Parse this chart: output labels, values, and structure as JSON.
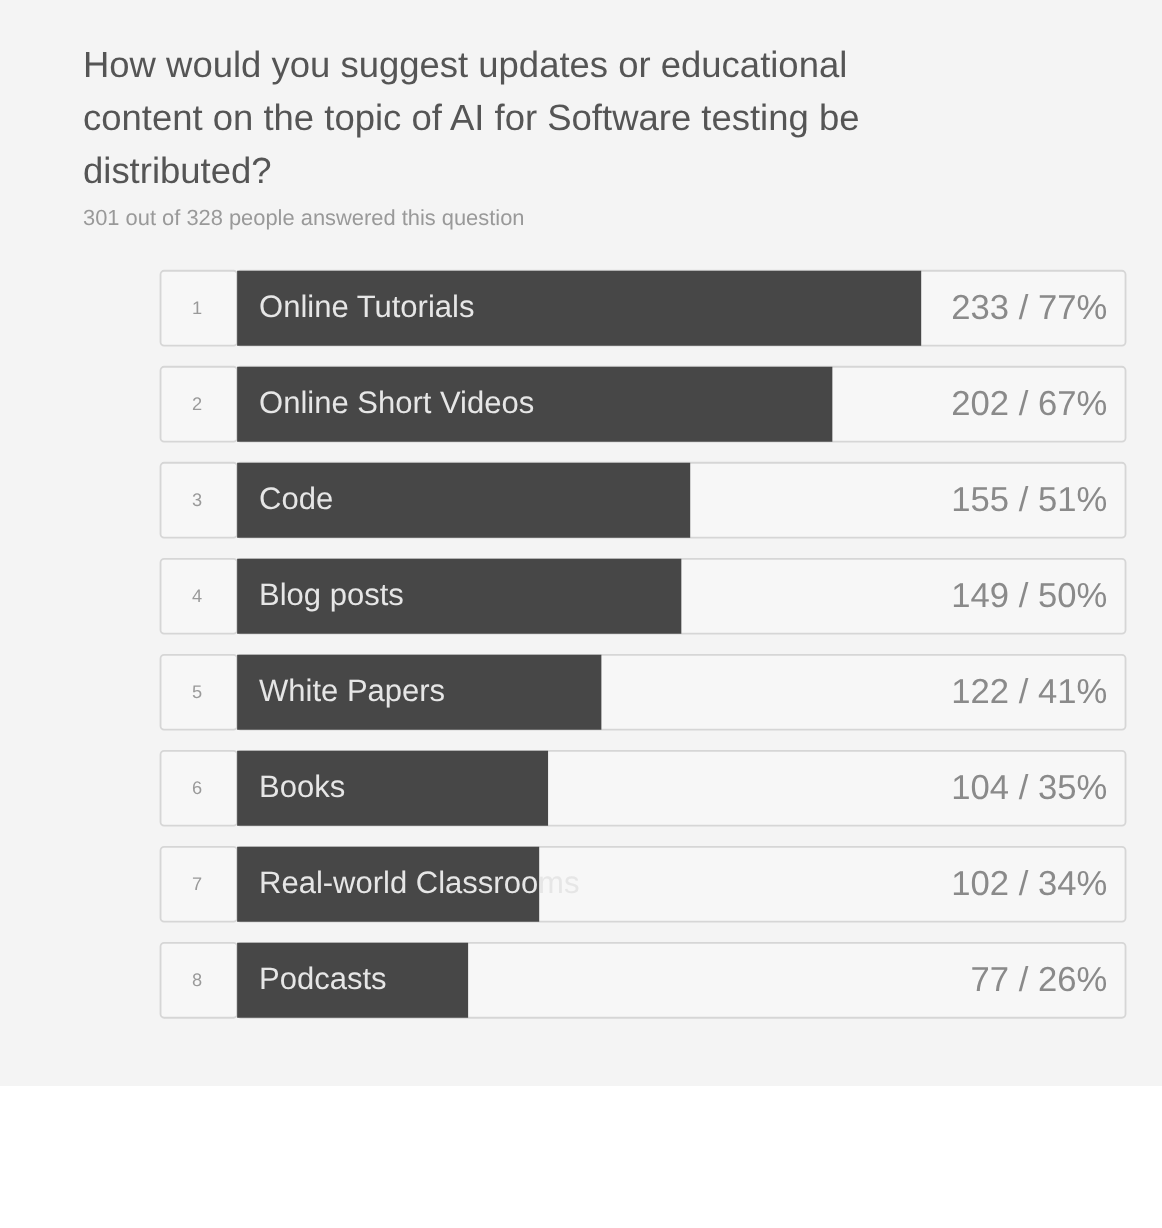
{
  "chart_data": {
    "type": "bar",
    "orientation": "horizontal",
    "title": "How would you suggest updates or educational content on the topic of AI for Software testing be distributed?",
    "subtitle": "301 out of 328 people answered this question",
    "categories": [
      "Online Tutorials",
      "Online Short Videos",
      "Code",
      "Blog posts",
      "White Papers",
      "Books",
      "Real-world Classrooms",
      "Podcasts"
    ],
    "values": [
      77,
      67,
      51,
      50,
      41,
      35,
      34,
      26
    ],
    "value_labels": [
      "233 / 77%",
      "202 / 67%",
      "155 / 51%",
      "149 / 50%",
      "122 / 41%",
      "104 / 35%",
      "102 / 34%",
      "77 / 26%"
    ],
    "color": "#474747",
    "xlim": [
      0,
      100
    ],
    "annotations": [
      "1",
      "2",
      "3",
      "4",
      "5",
      "6",
      "7",
      "8"
    ]
  }
}
